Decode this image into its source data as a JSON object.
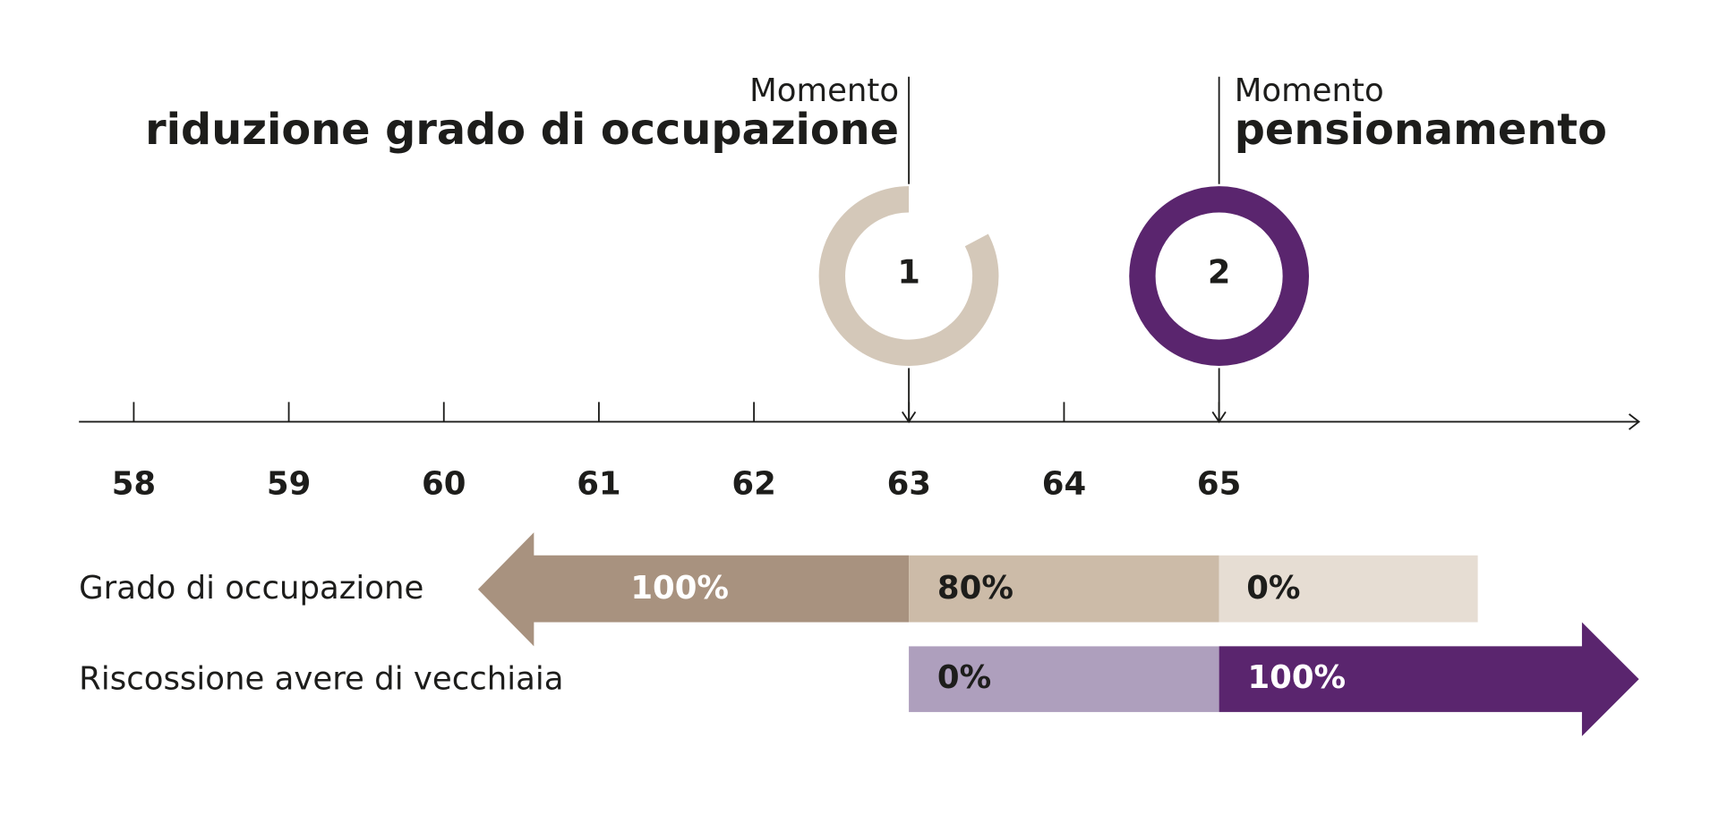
{
  "markers": [
    {
      "pre": "Momento",
      "title": "riduzione grado di occupazione",
      "number": "1"
    },
    {
      "pre": "Momento",
      "title": "pensionamento",
      "number": "2"
    }
  ],
  "axis": {
    "ticks": [
      "58",
      "59",
      "60",
      "61",
      "62",
      "63",
      "64",
      "65"
    ]
  },
  "rows": [
    {
      "label": "Grado di occupazione",
      "segments": [
        "100%",
        "80%",
        "0%"
      ]
    },
    {
      "label": "Riscossione avere di vecchiaia",
      "segments": [
        "0%",
        "100%"
      ]
    }
  ]
}
